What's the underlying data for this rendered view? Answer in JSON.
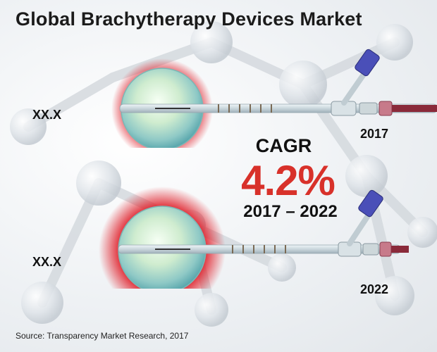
{
  "title": "Global Brachytherapy Devices Market",
  "cagr": {
    "label": "CAGR",
    "value": "4.2%",
    "period": "2017 – 2022"
  },
  "bars": [
    {
      "value_label": "XX.X",
      "year": "2017"
    },
    {
      "value_label": "XX.X",
      "year": "2022"
    }
  ],
  "source": "Source: Transparency Market Research, 2017",
  "colors": {
    "accent": "#d8312a",
    "glow": "#e0202a",
    "text": "#111111"
  }
}
